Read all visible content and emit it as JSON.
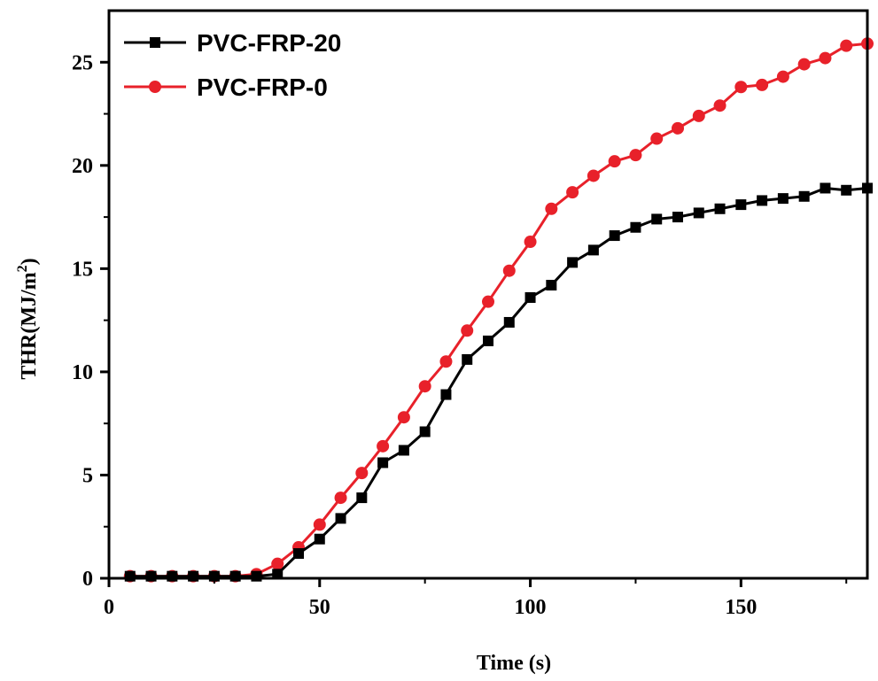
{
  "chart_data": {
    "type": "line",
    "title": "",
    "xlabel": "Time (s)",
    "ylabel": "THR(MJ/m",
    "ylabel_superscript": "2",
    "ylabel_suffix": ")",
    "xlim": [
      0,
      180
    ],
    "ylim": [
      0,
      27.5
    ],
    "xticks": [
      0,
      50,
      100,
      150
    ],
    "yticks": [
      0,
      5,
      10,
      15,
      20,
      25
    ],
    "grid": false,
    "legend_position": "top-left",
    "x": [
      5,
      10,
      15,
      20,
      25,
      30,
      35,
      40,
      45,
      50,
      55,
      60,
      65,
      70,
      75,
      80,
      85,
      90,
      95,
      100,
      105,
      110,
      115,
      120,
      125,
      130,
      135,
      140,
      145,
      150,
      155,
      160,
      165,
      170,
      175,
      180
    ],
    "series": [
      {
        "name": "PVC-FRP-20",
        "color": "#000000",
        "marker": "square",
        "values": [
          0.1,
          0.1,
          0.1,
          0.1,
          0.1,
          0.1,
          0.1,
          0.2,
          1.2,
          1.9,
          2.9,
          3.9,
          5.6,
          6.2,
          7.1,
          8.9,
          10.6,
          11.5,
          12.4,
          13.6,
          14.2,
          15.3,
          15.9,
          16.6,
          17.0,
          17.4,
          17.5,
          17.7,
          17.9,
          18.1,
          18.3,
          18.4,
          18.5,
          18.9,
          18.8,
          18.9
        ]
      },
      {
        "name": "PVC-FRP-0",
        "color": "#e8212a",
        "marker": "circle",
        "values": [
          0.1,
          0.1,
          0.1,
          0.1,
          0.1,
          0.1,
          0.2,
          0.7,
          1.5,
          2.6,
          3.9,
          5.1,
          6.4,
          7.8,
          9.3,
          10.5,
          12.0,
          13.4,
          14.9,
          16.3,
          17.9,
          18.7,
          19.5,
          20.2,
          20.5,
          21.3,
          21.8,
          22.4,
          22.9,
          23.8,
          23.9,
          24.3,
          24.9,
          25.2,
          25.8,
          25.9
        ]
      }
    ]
  }
}
